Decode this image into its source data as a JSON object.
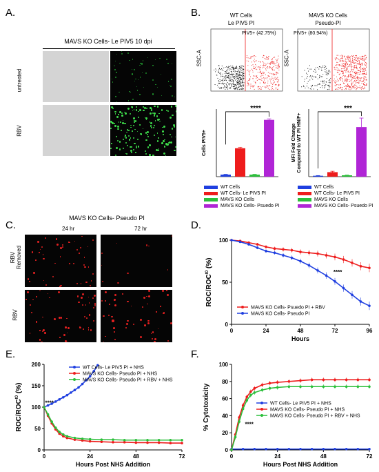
{
  "panels": {
    "A": {
      "label": "A.",
      "title": "MAVS KO Cells- Le PIV5 10 dpi",
      "row_labels": [
        "untreated",
        "RBV"
      ]
    },
    "B": {
      "label": "B.",
      "flow": [
        {
          "title1": "WT Cells",
          "title2": "Le PIV5 PI",
          "gate": "PIV5+ (42.75%)",
          "ylabel": "SSC-A"
        },
        {
          "title1": "MAVS KO Cells",
          "title2": "Pseudo-PI",
          "gate": "PIV5+ (80.94%)",
          "ylabel": "SSC-A"
        }
      ],
      "bar1_ylabel": "Cells PIV5+",
      "bar2_ylabel": "MFI Fold Change Compared to WT PI HN/F+",
      "bar2_ylabel_l1": "MFI Fold Change",
      "bar2_ylabel_l2": "Compared to WT PI HN/F+",
      "sig1": "****",
      "sig2": "***",
      "legend": [
        "WT Cells",
        "WT Cells- Le PIV5 PI",
        "MAVS KO Cells",
        "MAVS KO Cells- Psuedo PI"
      ]
    },
    "C": {
      "label": "C.",
      "title": "MAVS KO Cells- Pseudo PI",
      "col_labels": [
        "24 hr",
        "72 hr"
      ],
      "row_labels": [
        "RBV Removed",
        "RBV"
      ],
      "row1_l1": "RBV",
      "row1_l2": "Removed"
    },
    "D": {
      "label": "D.",
      "ylabel": "ROC/ROC",
      "ylabel_sup": "t0",
      "ylabel_unit": "(%)",
      "xlabel": "Hours",
      "sig": "****",
      "legend": [
        "MAVS KO Cells- Psuedo PI + RBV",
        "MAVS KO Cells- Pseudo PI"
      ]
    },
    "E": {
      "label": "E.",
      "ylabel": "ROC/ROC",
      "ylabel_sup": "t0",
      "ylabel_unit": "(%)",
      "xlabel": "Hours Post NHS Addition",
      "sig": "****",
      "legend": [
        "WT Cells- Le PIV5 PI + NHS",
        "MAVS KO Cells- Pseudo PI + NHS",
        "MAVS KO Cells- Pseudo PI + RBV + NHS"
      ]
    },
    "F": {
      "label": "F.",
      "ylabel": "% Cytotoxicity",
      "xlabel": "Hours Post NHS Addition",
      "sig": "****",
      "legend": [
        "WT Cells- Le PIV5 PI + NHS",
        "MAVS KO Cells- Pseudo PI + NHS",
        "MAVS KO Cells- Pseudo PI + RBV + NHS"
      ]
    }
  },
  "colors": {
    "blue": "#1f3fe0",
    "red": "#ee1c1c",
    "green": "#2bbf3a",
    "purple": "#b025d6"
  },
  "chart_data": [
    {
      "id": "B-bar1",
      "type": "bar",
      "categories": [
        "WT Cells",
        "WT Cells- Le PIV5 PI",
        "MAVS KO Cells",
        "MAVS KO Cells- Psuedo PI"
      ],
      "values": [
        3,
        42,
        3,
        84
      ],
      "errors": [
        0.5,
        1.5,
        0.5,
        1.5
      ],
      "ylabel": "Cells PIV5+",
      "ylim": [
        0,
        100
      ]
    },
    {
      "id": "B-bar2",
      "type": "bar",
      "categories": [
        "WT Cells",
        "WT Cells- Le PIV5 PI",
        "MAVS KO Cells",
        "MAVS KO Cells- Psuedo PI"
      ],
      "values": [
        0.2,
        1.0,
        0.3,
        11
      ],
      "errors": [
        0.05,
        0.2,
        0.05,
        2
      ],
      "ylabel": "MFI Fold Change Compared to WT PI HN/F+",
      "ylim": [
        0,
        15
      ]
    },
    {
      "id": "D",
      "type": "line",
      "xlabel": "Hours",
      "ylabel": "ROC/ROCt0 (%)",
      "xlim": [
        0,
        96
      ],
      "ylim": [
        0,
        100
      ],
      "xticks": [
        0,
        24,
        48,
        72,
        96
      ],
      "yticks": [
        0,
        50,
        100
      ],
      "series": [
        {
          "name": "MAVS KO Cells- Psuedo PI + RBV",
          "color": "red",
          "x": [
            0,
            6,
            12,
            18,
            24,
            30,
            36,
            42,
            48,
            54,
            60,
            66,
            72,
            78,
            84,
            90,
            96
          ],
          "y": [
            100,
            99,
            97,
            95,
            92,
            90,
            89,
            88,
            86,
            85,
            84,
            82,
            80,
            77,
            73,
            69,
            67
          ]
        },
        {
          "name": "MAVS KO Cells- Pseudo PI",
          "color": "blue",
          "x": [
            0,
            6,
            12,
            18,
            24,
            30,
            36,
            42,
            48,
            54,
            60,
            66,
            72,
            78,
            84,
            90,
            96
          ],
          "y": [
            100,
            98,
            95,
            91,
            87,
            85,
            82,
            79,
            75,
            70,
            64,
            58,
            51,
            43,
            35,
            27,
            22
          ]
        }
      ]
    },
    {
      "id": "E",
      "type": "line",
      "xlabel": "Hours Post NHS Addition",
      "ylabel": "ROC/ROCt0 (%)",
      "xlim": [
        0,
        72
      ],
      "ylim": [
        0,
        200
      ],
      "xticks": [
        0,
        24,
        48,
        72
      ],
      "yticks": [
        0,
        50,
        100,
        150,
        200
      ],
      "series": [
        {
          "name": "WT Cells- Le PIV5 PI + NHS",
          "color": "blue",
          "x": [
            0,
            2,
            4,
            6,
            8,
            10,
            12,
            14,
            16,
            18,
            20,
            22,
            24,
            26,
            28
          ],
          "y": [
            100,
            104,
            108,
            113,
            118,
            123,
            128,
            134,
            140,
            146,
            154,
            163,
            172,
            184,
            198
          ]
        },
        {
          "name": "MAVS KO Cells- Pseudo PI + NHS",
          "color": "red",
          "x": [
            0,
            2,
            4,
            6,
            8,
            10,
            12,
            16,
            20,
            24,
            30,
            36,
            42,
            48,
            54,
            60,
            66,
            72
          ],
          "y": [
            100,
            80,
            62,
            48,
            38,
            32,
            28,
            24,
            22,
            20,
            19,
            18,
            18,
            17,
            17,
            17,
            16,
            16
          ]
        },
        {
          "name": "MAVS KO Cells- Pseudo PI + RBV + NHS",
          "color": "green",
          "x": [
            0,
            2,
            4,
            6,
            8,
            10,
            12,
            16,
            20,
            24,
            30,
            36,
            42,
            48,
            54,
            60,
            66,
            72
          ],
          "y": [
            100,
            83,
            66,
            52,
            42,
            36,
            32,
            28,
            26,
            25,
            24,
            24,
            23,
            23,
            23,
            23,
            23,
            23
          ]
        }
      ]
    },
    {
      "id": "F",
      "type": "line",
      "xlabel": "Hours Post NHS Addition",
      "ylabel": "% Cytotoxicity",
      "xlim": [
        0,
        72
      ],
      "ylim": [
        0,
        100
      ],
      "xticks": [
        0,
        24,
        48,
        72
      ],
      "yticks": [
        0,
        20,
        40,
        60,
        80,
        100
      ],
      "series": [
        {
          "name": "WT Cells- Le PIV5 PI + NHS",
          "color": "blue",
          "x": [
            0,
            6,
            12,
            18,
            24,
            30,
            36,
            42,
            48,
            54,
            60,
            66,
            72
          ],
          "y": [
            1,
            1,
            1,
            1,
            1,
            1,
            1,
            1,
            1,
            1,
            1,
            1,
            1
          ]
        },
        {
          "name": "MAVS KO Cells- Pseudo PI + NHS",
          "color": "red",
          "x": [
            0,
            2,
            4,
            6,
            8,
            10,
            12,
            16,
            20,
            24,
            30,
            36,
            42,
            48,
            54,
            60,
            66,
            72
          ],
          "y": [
            0,
            18,
            38,
            52,
            62,
            68,
            72,
            76,
            78,
            79,
            80,
            81,
            82,
            82,
            82,
            82,
            82,
            82
          ]
        },
        {
          "name": "MAVS KO Cells- Pseudo PI + RBV + NHS",
          "color": "green",
          "x": [
            0,
            2,
            4,
            6,
            8,
            10,
            12,
            16,
            20,
            24,
            30,
            36,
            42,
            48,
            54,
            60,
            66,
            72
          ],
          "y": [
            0,
            15,
            33,
            48,
            58,
            64,
            67,
            70,
            72,
            73,
            74,
            74,
            74,
            74,
            74,
            74,
            74,
            74
          ]
        }
      ]
    }
  ]
}
